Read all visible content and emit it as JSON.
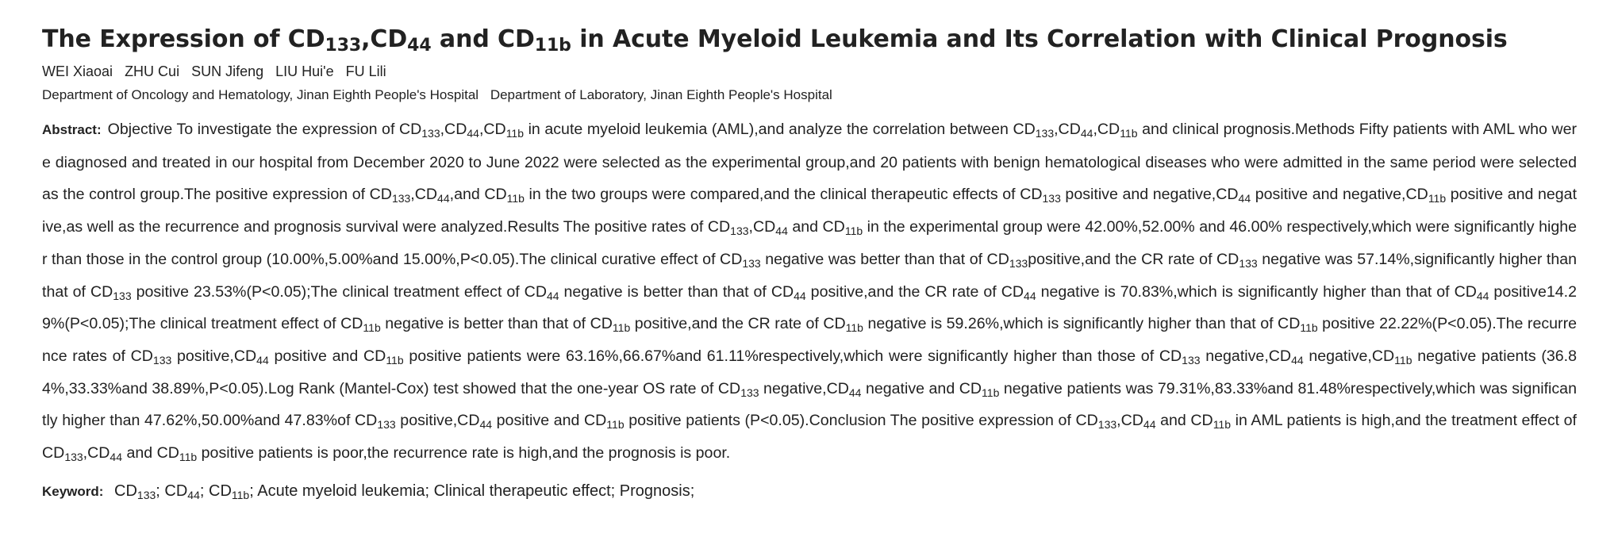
{
  "title": [
    {
      "t": "The Expression of CD"
    },
    {
      "s": "133"
    },
    {
      "t": ",CD"
    },
    {
      "s": "44"
    },
    {
      "t": " and CD"
    },
    {
      "s": "11b"
    },
    {
      "t": " in Acute Myeloid Leukemia and Its Correlation with Clinical Prognosis"
    }
  ],
  "authors": [
    "WEI Xiaoai",
    "ZHU Cui",
    "SUN Jifeng",
    "LIU Hui'e",
    "FU Lili"
  ],
  "organizations": [
    "Department of Oncology and Hematology, Jinan Eighth People's Hospital",
    "Department of Laboratory, Jinan Eighth People's Hospital"
  ],
  "abstract_label": "Abstract:",
  "abstract": [
    {
      "t": "Objective To investigate the expression of CD"
    },
    {
      "s": "133"
    },
    {
      "t": ",CD"
    },
    {
      "s": "44"
    },
    {
      "t": ",CD"
    },
    {
      "s": "11b"
    },
    {
      "t": " in acute myeloid leukemia (AML),and analyze the correlation between CD"
    },
    {
      "s": "133"
    },
    {
      "t": ",CD"
    },
    {
      "s": "44"
    },
    {
      "t": ",CD"
    },
    {
      "s": "11b"
    },
    {
      "t": " and clinical prognosis.Methods Fifty patients with AML who were diagnosed and treated in our hospital from December 2020 to June 2022 were selected as the experimental group,and 20 patients with benign hematological diseases who were admitted in the same period were selected as the control group.The positive expression of CD"
    },
    {
      "s": "133"
    },
    {
      "t": ",CD"
    },
    {
      "s": "44"
    },
    {
      "t": ",and CD"
    },
    {
      "s": "11b"
    },
    {
      "t": " in the two groups were compared,and the clinical therapeutic effects of CD"
    },
    {
      "s": "133"
    },
    {
      "t": " positive and negative,CD"
    },
    {
      "s": "44"
    },
    {
      "t": " positive and negative,CD"
    },
    {
      "s": "11b"
    },
    {
      "t": " positive and negative,as well as the recurrence and prognosis survival were analyzed.Results The positive rates of CD"
    },
    {
      "s": "133"
    },
    {
      "t": ",CD"
    },
    {
      "s": "44"
    },
    {
      "t": " and CD"
    },
    {
      "s": "11b"
    },
    {
      "t": " in the experimental group were 42.00%,52.00% and 46.00% respectively,which were significantly higher than those in the control group (10.00%,5.00%and 15.00%,P<0.05).The clinical curative effect of CD"
    },
    {
      "s": "133"
    },
    {
      "t": " negative was better than that of CD"
    },
    {
      "s": "133"
    },
    {
      "t": "positive,and the CR rate of CD"
    },
    {
      "s": "133"
    },
    {
      "t": " negative was 57.14%,significantly higher than that of CD"
    },
    {
      "s": "133"
    },
    {
      "t": " positive 23.53%(P<0.05);The clinical treatment effect of CD"
    },
    {
      "s": "44"
    },
    {
      "t": " negative is better than that of CD"
    },
    {
      "s": "44"
    },
    {
      "t": " positive,and the CR rate of CD"
    },
    {
      "s": "44"
    },
    {
      "t": " negative is 70.83%,which is significantly higher than that of CD"
    },
    {
      "s": "44"
    },
    {
      "t": " positive14.29%(P<0.05);The clinical treatment effect of CD"
    },
    {
      "s": "11b"
    },
    {
      "t": " negative is better than that of CD"
    },
    {
      "s": "11b"
    },
    {
      "t": " positive,and the CR rate of CD"
    },
    {
      "s": "11b"
    },
    {
      "t": " negative is 59.26%,which is significantly higher than that of CD"
    },
    {
      "s": "11b"
    },
    {
      "t": " positive 22.22%(P<0.05).The recurrence rates of CD"
    },
    {
      "s": "133"
    },
    {
      "t": " positive,CD"
    },
    {
      "s": "44"
    },
    {
      "t": " positive and CD"
    },
    {
      "s": "11b"
    },
    {
      "t": " positive patients were 63.16%,66.67%and 61.11%respectively,which were significantly higher than those of CD"
    },
    {
      "s": "133"
    },
    {
      "t": " negative,CD"
    },
    {
      "s": "44"
    },
    {
      "t": " negative,CD"
    },
    {
      "s": "11b"
    },
    {
      "t": " negative patients (36.84%,33.33%and 38.89%,P<0.05).Log Rank (Mantel-Cox) test showed that the one-year OS rate of CD"
    },
    {
      "s": "133"
    },
    {
      "t": " negative,CD"
    },
    {
      "s": "44"
    },
    {
      "t": " negative and CD"
    },
    {
      "s": "11b"
    },
    {
      "t": " negative patients was 79.31%,83.33%and 81.48%respectively,which was significantly higher than 47.62%,50.00%and 47.83%of CD"
    },
    {
      "s": "133"
    },
    {
      "t": " positive,CD"
    },
    {
      "s": "44"
    },
    {
      "t": " positive and CD"
    },
    {
      "s": "11b"
    },
    {
      "t": " positive patients (P<0.05).Conclusion The positive expression of CD"
    },
    {
      "s": "133"
    },
    {
      "t": ",CD"
    },
    {
      "s": "44"
    },
    {
      "t": " and CD"
    },
    {
      "s": "11b"
    },
    {
      "t": " in AML patients is high,and the treatment effect of CD"
    },
    {
      "s": "133"
    },
    {
      "t": ",CD"
    },
    {
      "s": "44"
    },
    {
      "t": " and CD"
    },
    {
      "s": "11b"
    },
    {
      "t": " positive patients is poor,the recurrence rate is high,and the prognosis is poor."
    }
  ],
  "keyword_label": "Keyword:",
  "keywords": [
    [
      {
        "t": "CD"
      },
      {
        "s": "133"
      },
      {
        "t": ";"
      }
    ],
    [
      {
        "t": "CD"
      },
      {
        "s": "44"
      },
      {
        "t": ";"
      }
    ],
    [
      {
        "t": "CD"
      },
      {
        "s": "11b"
      },
      {
        "t": ";"
      }
    ],
    [
      {
        "t": "Acute myeloid leukemia;"
      }
    ],
    [
      {
        "t": "Clinical therapeutic effect;"
      }
    ],
    [
      {
        "t": "Prognosis;"
      }
    ]
  ]
}
